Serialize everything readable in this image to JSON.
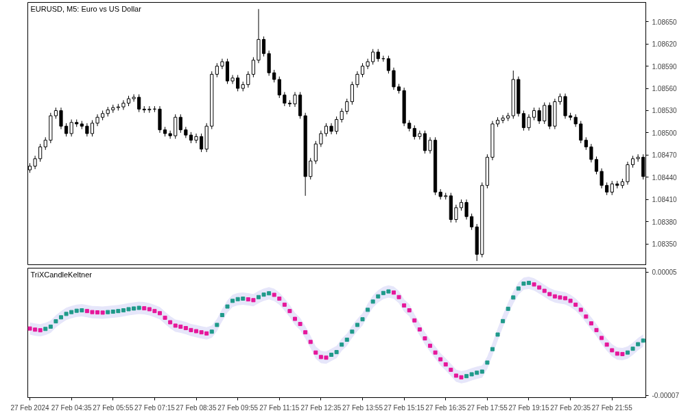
{
  "chart_data": [
    {
      "type": "candlestick",
      "title": "EURUSD, M5:  Euro vs US Dollar",
      "tick_labels": "y",
      "x": [
        "2024-02-27T03:15",
        "2024-02-27T03:25",
        "2024-02-27T03:35",
        "2024-02-27T03:45",
        "2024-02-27T03:55",
        "2024-02-27T04:05",
        "2024-02-27T04:15",
        "2024-02-27T04:25",
        "2024-02-27T04:35",
        "2024-02-27T04:45",
        "2024-02-27T04:55",
        "2024-02-27T05:05",
        "2024-02-27T05:15",
        "2024-02-27T05:25",
        "2024-02-27T05:35",
        "2024-02-27T05:45",
        "2024-02-27T05:55",
        "2024-02-27T06:05",
        "2024-02-27T06:15",
        "2024-02-27T06:25",
        "2024-02-27T06:35",
        "2024-02-27T06:45",
        "2024-02-27T06:55",
        "2024-02-27T07:05",
        "2024-02-27T07:15",
        "2024-02-27T07:25",
        "2024-02-27T07:35",
        "2024-02-27T07:45",
        "2024-02-27T07:55",
        "2024-02-27T08:05",
        "2024-02-27T08:15",
        "2024-02-27T08:25",
        "2024-02-27T08:35",
        "2024-02-27T08:45",
        "2024-02-27T08:55",
        "2024-02-27T09:05",
        "2024-02-27T09:15",
        "2024-02-27T09:25",
        "2024-02-27T09:35",
        "2024-02-27T09:45",
        "2024-02-27T09:55",
        "2024-02-27T10:05",
        "2024-02-27T10:15",
        "2024-02-27T10:25",
        "2024-02-27T10:35",
        "2024-02-27T10:45",
        "2024-02-27T10:55",
        "2024-02-27T11:05",
        "2024-02-27T11:15",
        "2024-02-27T11:25",
        "2024-02-27T11:35",
        "2024-02-27T11:45",
        "2024-02-27T11:55",
        "2024-02-27T12:05",
        "2024-02-27T12:15",
        "2024-02-27T12:25",
        "2024-02-27T12:35",
        "2024-02-27T12:45",
        "2024-02-27T12:55",
        "2024-02-27T13:05",
        "2024-02-27T13:15",
        "2024-02-27T13:25",
        "2024-02-27T13:35",
        "2024-02-27T13:45",
        "2024-02-27T13:55",
        "2024-02-27T14:05",
        "2024-02-27T14:15",
        "2024-02-27T14:25",
        "2024-02-27T14:35",
        "2024-02-27T14:45",
        "2024-02-27T14:55",
        "2024-02-27T15:05",
        "2024-02-27T15:15",
        "2024-02-27T15:25",
        "2024-02-27T15:35",
        "2024-02-27T15:45",
        "2024-02-27T15:55",
        "2024-02-27T16:05",
        "2024-02-27T16:15",
        "2024-02-27T16:25",
        "2024-02-27T16:35",
        "2024-02-27T16:45",
        "2024-02-27T16:55",
        "2024-02-27T17:05",
        "2024-02-27T17:15",
        "2024-02-27T17:25",
        "2024-02-27T17:35",
        "2024-02-27T17:45",
        "2024-02-27T17:55",
        "2024-02-27T18:05",
        "2024-02-27T18:15",
        "2024-02-27T18:25",
        "2024-02-27T18:35",
        "2024-02-27T18:45",
        "2024-02-27T18:55",
        "2024-02-27T19:05",
        "2024-02-27T19:15",
        "2024-02-27T19:25",
        "2024-02-27T19:35",
        "2024-02-27T19:45",
        "2024-02-27T19:55",
        "2024-02-27T20:05",
        "2024-02-27T20:15",
        "2024-02-27T20:25",
        "2024-02-27T20:35",
        "2024-02-27T20:45",
        "2024-02-27T20:55",
        "2024-02-27T21:05",
        "2024-02-27T21:15",
        "2024-02-27T21:25",
        "2024-02-27T21:35",
        "2024-02-27T21:45",
        "2024-02-27T21:55",
        "2024-02-27T22:05",
        "2024-02-27T22:15",
        "2024-02-27T22:25",
        "2024-02-27T22:35",
        "2024-02-27T22:45",
        "2024-02-27T22:55"
      ],
      "ohlc": [
        [
          1.0845,
          1.08459,
          1.08446,
          1.08455
        ],
        [
          1.08455,
          1.08469,
          1.08451,
          1.08465
        ],
        [
          1.08465,
          1.08485,
          1.08461,
          1.08481
        ],
        [
          1.08481,
          1.08494,
          1.08477,
          1.0849
        ],
        [
          1.0849,
          1.08527,
          1.08486,
          1.08523
        ],
        [
          1.08523,
          1.08534,
          1.08519,
          1.0853
        ],
        [
          1.0853,
          1.08534,
          1.08505,
          1.08509
        ],
        [
          1.08509,
          1.08513,
          1.08495,
          1.08499
        ],
        [
          1.08499,
          1.08518,
          1.08495,
          1.08514
        ],
        [
          1.08514,
          1.08518,
          1.08508,
          1.08512
        ],
        [
          1.08512,
          1.08516,
          1.08505,
          1.08509
        ],
        [
          1.08509,
          1.08513,
          1.08495,
          1.08499
        ],
        [
          1.08499,
          1.08517,
          1.08495,
          1.08513
        ],
        [
          1.08513,
          1.08525,
          1.08509,
          1.08521
        ],
        [
          1.08521,
          1.0853,
          1.08517,
          1.08526
        ],
        [
          1.08526,
          1.08535,
          1.08522,
          1.08531
        ],
        [
          1.08531,
          1.08538,
          1.08527,
          1.08534
        ],
        [
          1.08534,
          1.08539,
          1.0853,
          1.08535
        ],
        [
          1.08535,
          1.08544,
          1.08531,
          1.0854
        ],
        [
          1.0854,
          1.0855,
          1.08536,
          1.08546
        ],
        [
          1.08546,
          1.08552,
          1.08542,
          1.08548
        ],
        [
          1.08548,
          1.08552,
          1.08528,
          1.08532
        ],
        [
          1.08532,
          1.08536,
          1.08527,
          1.08531
        ],
        [
          1.08531,
          1.08536,
          1.08527,
          1.08532
        ],
        [
          1.08532,
          1.08536,
          1.08528,
          1.08532
        ],
        [
          1.08532,
          1.08536,
          1.085,
          1.08504
        ],
        [
          1.08504,
          1.08508,
          1.08495,
          1.08499
        ],
        [
          1.08499,
          1.08503,
          1.08492,
          1.08496
        ],
        [
          1.08496,
          1.08525,
          1.08492,
          1.08521
        ],
        [
          1.08521,
          1.08525,
          1.085,
          1.08504
        ],
        [
          1.08504,
          1.08508,
          1.08493,
          1.08497
        ],
        [
          1.08497,
          1.08501,
          1.08486,
          1.0849
        ],
        [
          1.0849,
          1.08499,
          1.08486,
          1.08495
        ],
        [
          1.08495,
          1.08499,
          1.08474,
          1.08478
        ],
        [
          1.08478,
          1.08513,
          1.08474,
          1.08509
        ],
        [
          1.08509,
          1.08583,
          1.08505,
          1.08579
        ],
        [
          1.08579,
          1.08594,
          1.08575,
          1.0859
        ],
        [
          1.0859,
          1.086,
          1.08586,
          1.08596
        ],
        [
          1.08596,
          1.086,
          1.08566,
          1.0857
        ],
        [
          1.0857,
          1.08578,
          1.08566,
          1.08574
        ],
        [
          1.08574,
          1.08578,
          1.08556,
          1.0856
        ],
        [
          1.0856,
          1.08569,
          1.08556,
          1.08565
        ],
        [
          1.08565,
          1.08583,
          1.08561,
          1.08579
        ],
        [
          1.08579,
          1.08602,
          1.08575,
          1.08598
        ],
        [
          1.08598,
          1.08667,
          1.08594,
          1.08626
        ],
        [
          1.08626,
          1.0863,
          1.08603,
          1.08607
        ],
        [
          1.08607,
          1.08611,
          1.08577,
          1.08581
        ],
        [
          1.08581,
          1.08585,
          1.08568,
          1.08572
        ],
        [
          1.08572,
          1.08576,
          1.08547,
          1.08551
        ],
        [
          1.08551,
          1.08555,
          1.08536,
          1.0854
        ],
        [
          1.0854,
          1.08544,
          1.08535,
          1.08539
        ],
        [
          1.08539,
          1.08555,
          1.08535,
          1.08551
        ],
        [
          1.08551,
          1.08555,
          1.08519,
          1.08523
        ],
        [
          1.08523,
          1.08527,
          1.08415,
          1.08441
        ],
        [
          1.08441,
          1.08466,
          1.08437,
          1.08462
        ],
        [
          1.08462,
          1.08489,
          1.08458,
          1.08485
        ],
        [
          1.08485,
          1.08503,
          1.08481,
          1.08499
        ],
        [
          1.08499,
          1.08513,
          1.08495,
          1.08509
        ],
        [
          1.08509,
          1.08513,
          1.08498,
          1.08502
        ],
        [
          1.08502,
          1.08522,
          1.08498,
          1.08518
        ],
        [
          1.08518,
          1.08533,
          1.08514,
          1.08529
        ],
        [
          1.08529,
          1.08546,
          1.08525,
          1.08542
        ],
        [
          1.08542,
          1.08569,
          1.08538,
          1.08565
        ],
        [
          1.08565,
          1.08583,
          1.08561,
          1.08579
        ],
        [
          1.08579,
          1.08594,
          1.08575,
          1.0859
        ],
        [
          1.0859,
          1.086,
          1.08586,
          1.08596
        ],
        [
          1.08596,
          1.08613,
          1.08592,
          1.08609
        ],
        [
          1.08609,
          1.08613,
          1.08596,
          1.086
        ],
        [
          1.086,
          1.08604,
          1.08596,
          1.086
        ],
        [
          1.086,
          1.08604,
          1.0858,
          1.08584
        ],
        [
          1.08584,
          1.08588,
          1.08558,
          1.08562
        ],
        [
          1.08562,
          1.08566,
          1.08553,
          1.08557
        ],
        [
          1.08557,
          1.08561,
          1.08509,
          1.08513
        ],
        [
          1.08513,
          1.08517,
          1.08502,
          1.08506
        ],
        [
          1.08506,
          1.0851,
          1.08491,
          1.08495
        ],
        [
          1.08495,
          1.08503,
          1.08491,
          1.08499
        ],
        [
          1.08499,
          1.08503,
          1.08472,
          1.08476
        ],
        [
          1.08476,
          1.08494,
          1.08472,
          1.0849
        ],
        [
          1.0849,
          1.08494,
          1.08416,
          1.0842
        ],
        [
          1.0842,
          1.08424,
          1.0841,
          1.08414
        ],
        [
          1.08414,
          1.08419,
          1.0841,
          1.08415
        ],
        [
          1.08415,
          1.08419,
          1.08379,
          1.08383
        ],
        [
          1.08383,
          1.08403,
          1.08379,
          1.08399
        ],
        [
          1.08399,
          1.0841,
          1.08395,
          1.08406
        ],
        [
          1.08406,
          1.0841,
          1.08383,
          1.08387
        ],
        [
          1.08387,
          1.08391,
          1.08369,
          1.08373
        ],
        [
          1.08373,
          1.08377,
          1.08327,
          1.08336
        ],
        [
          1.08336,
          1.08433,
          1.08332,
          1.08429
        ],
        [
          1.08429,
          1.08471,
          1.08425,
          1.08467
        ],
        [
          1.08467,
          1.08516,
          1.08463,
          1.08512
        ],
        [
          1.08512,
          1.08521,
          1.08508,
          1.08517
        ],
        [
          1.08517,
          1.08524,
          1.08513,
          1.0852
        ],
        [
          1.0852,
          1.08527,
          1.08516,
          1.08523
        ],
        [
          1.08523,
          1.08584,
          1.08519,
          1.08572
        ],
        [
          1.08572,
          1.08576,
          1.08522,
          1.08526
        ],
        [
          1.08526,
          1.0853,
          1.08503,
          1.08507
        ],
        [
          1.08507,
          1.08525,
          1.08503,
          1.08521
        ],
        [
          1.08521,
          1.08534,
          1.08517,
          1.0853
        ],
        [
          1.0853,
          1.08534,
          1.08512,
          1.08516
        ],
        [
          1.08516,
          1.08541,
          1.08512,
          1.08537
        ],
        [
          1.08537,
          1.08541,
          1.08505,
          1.08509
        ],
        [
          1.08509,
          1.08546,
          1.08505,
          1.08542
        ],
        [
          1.08542,
          1.08553,
          1.08538,
          1.08549
        ],
        [
          1.08549,
          1.08553,
          1.08519,
          1.08523
        ],
        [
          1.08523,
          1.08527,
          1.08517,
          1.08521
        ],
        [
          1.08521,
          1.08525,
          1.08508,
          1.08512
        ],
        [
          1.08512,
          1.08516,
          1.08486,
          1.0849
        ],
        [
          1.0849,
          1.08494,
          1.08477,
          1.08481
        ],
        [
          1.08481,
          1.08485,
          1.0846,
          1.08464
        ],
        [
          1.08464,
          1.08468,
          1.08444,
          1.08448
        ],
        [
          1.08448,
          1.08452,
          1.08425,
          1.08429
        ],
        [
          1.08429,
          1.08433,
          1.08416,
          1.0842
        ],
        [
          1.0842,
          1.08435,
          1.08416,
          1.08431
        ],
        [
          1.08431,
          1.08435,
          1.08425,
          1.08429
        ],
        [
          1.08429,
          1.08438,
          1.08425,
          1.08434
        ],
        [
          1.08434,
          1.08461,
          1.0843,
          1.08457
        ],
        [
          1.08457,
          1.08469,
          1.08453,
          1.08465
        ],
        [
          1.08465,
          1.08471,
          1.08461,
          1.08467
        ],
        [
          1.08467,
          1.08471,
          1.08437,
          1.08441
        ]
      ],
      "xlim": [
        "2024-02-27T03:11",
        "2024-02-27T23:00"
      ],
      "ylim": [
        1.08322,
        1.08676
      ],
      "yticks": [
        {
          "value": 1.0835,
          "label": "1.08350"
        },
        {
          "value": 1.0838,
          "label": "1.08380"
        },
        {
          "value": 1.0841,
          "label": "1.08410"
        },
        {
          "value": 1.0844,
          "label": "1.08440"
        },
        {
          "value": 1.0847,
          "label": "1.08470"
        },
        {
          "value": 1.085,
          "label": "1.08500"
        },
        {
          "value": 1.0853,
          "label": "1.08530"
        },
        {
          "value": 1.0856,
          "label": "1.08560"
        },
        {
          "value": 1.0859,
          "label": "1.08590"
        },
        {
          "value": 1.0862,
          "label": "1.08620"
        },
        {
          "value": 1.0865,
          "label": "1.08650"
        }
      ]
    },
    {
      "type": "scatter",
      "title": "TriXCandleKeltner",
      "marker": "square",
      "x": [
        "2024-02-27T03:15",
        "2024-02-27T03:25",
        "2024-02-27T03:35",
        "2024-02-27T03:45",
        "2024-02-27T03:55",
        "2024-02-27T04:05",
        "2024-02-27T04:15",
        "2024-02-27T04:25",
        "2024-02-27T04:35",
        "2024-02-27T04:45",
        "2024-02-27T04:55",
        "2024-02-27T05:05",
        "2024-02-27T05:15",
        "2024-02-27T05:25",
        "2024-02-27T05:35",
        "2024-02-27T05:45",
        "2024-02-27T05:55",
        "2024-02-27T06:05",
        "2024-02-27T06:15",
        "2024-02-27T06:25",
        "2024-02-27T06:35",
        "2024-02-27T06:45",
        "2024-02-27T06:55",
        "2024-02-27T07:05",
        "2024-02-27T07:15",
        "2024-02-27T07:25",
        "2024-02-27T07:35",
        "2024-02-27T07:45",
        "2024-02-27T07:55",
        "2024-02-27T08:05",
        "2024-02-27T08:15",
        "2024-02-27T08:25",
        "2024-02-27T08:35",
        "2024-02-27T08:45",
        "2024-02-27T08:55",
        "2024-02-27T09:05",
        "2024-02-27T09:15",
        "2024-02-27T09:25",
        "2024-02-27T09:35",
        "2024-02-27T09:45",
        "2024-02-27T09:55",
        "2024-02-27T10:05",
        "2024-02-27T10:15",
        "2024-02-27T10:25",
        "2024-02-27T10:35",
        "2024-02-27T10:45",
        "2024-02-27T10:55",
        "2024-02-27T11:05",
        "2024-02-27T11:15",
        "2024-02-27T11:25",
        "2024-02-27T11:35",
        "2024-02-27T11:45",
        "2024-02-27T11:55",
        "2024-02-27T12:05",
        "2024-02-27T12:15",
        "2024-02-27T12:25",
        "2024-02-27T12:35",
        "2024-02-27T12:45",
        "2024-02-27T12:55",
        "2024-02-27T13:05",
        "2024-02-27T13:15",
        "2024-02-27T13:25",
        "2024-02-27T13:35",
        "2024-02-27T13:45",
        "2024-02-27T13:55",
        "2024-02-27T14:05",
        "2024-02-27T14:15",
        "2024-02-27T14:25",
        "2024-02-27T14:35",
        "2024-02-27T14:45",
        "2024-02-27T14:55",
        "2024-02-27T15:05",
        "2024-02-27T15:15",
        "2024-02-27T15:25",
        "2024-02-27T15:35",
        "2024-02-27T15:45",
        "2024-02-27T15:55",
        "2024-02-27T16:05",
        "2024-02-27T16:15",
        "2024-02-27T16:25",
        "2024-02-27T16:35",
        "2024-02-27T16:45",
        "2024-02-27T16:55",
        "2024-02-27T17:05",
        "2024-02-27T17:15",
        "2024-02-27T17:25",
        "2024-02-27T17:35",
        "2024-02-27T17:45",
        "2024-02-27T17:55",
        "2024-02-27T18:05",
        "2024-02-27T18:15",
        "2024-02-27T18:25",
        "2024-02-27T18:35",
        "2024-02-27T18:45",
        "2024-02-27T18:55",
        "2024-02-27T19:05",
        "2024-02-27T19:15",
        "2024-02-27T19:25",
        "2024-02-27T19:35",
        "2024-02-27T19:45",
        "2024-02-27T19:55",
        "2024-02-27T20:05",
        "2024-02-27T20:15",
        "2024-02-27T20:25",
        "2024-02-27T20:35",
        "2024-02-27T20:45",
        "2024-02-27T20:55",
        "2024-02-27T21:05",
        "2024-02-27T21:15",
        "2024-02-27T21:25",
        "2024-02-27T21:35",
        "2024-02-27T21:45",
        "2024-02-27T21:55",
        "2024-02-27T22:05",
        "2024-02-27T22:15",
        "2024-02-27T22:25",
        "2024-02-27T22:35",
        "2024-02-27T22:45",
        "2024-02-27T22:55"
      ],
      "series": [
        {
          "colors": [
            "#e6179a",
            "#e6179a",
            "#e6179a",
            "#1f9a8a",
            "#1f9a8a",
            "#1f9a8a",
            "#1f9a8a",
            "#1f9a8a",
            "#1f9a8a",
            "#1f9a8a",
            "#1f9a8a",
            "#e6179a",
            "#e6179a",
            "#e6179a",
            "#e6179a",
            "#1f9a8a",
            "#1f9a8a",
            "#1f9a8a",
            "#1f9a8a",
            "#1f9a8a",
            "#1f9a8a",
            "#1f9a8a",
            "#e6179a",
            "#e6179a",
            "#e6179a",
            "#e6179a",
            "#e6179a",
            "#e6179a",
            "#e6179a",
            "#e6179a",
            "#e6179a",
            "#e6179a",
            "#e6179a",
            "#e6179a",
            "#e6179a",
            "#1f9a8a",
            "#1f9a8a",
            "#1f9a8a",
            "#1f9a8a",
            "#1f9a8a",
            "#1f9a8a",
            "#1f9a8a",
            "#e6179a",
            "#e6179a",
            "#1f9a8a",
            "#1f9a8a",
            "#1f9a8a",
            "#e6179a",
            "#e6179a",
            "#e6179a",
            "#e6179a",
            "#e6179a",
            "#e6179a",
            "#e6179a",
            "#e6179a",
            "#e6179a",
            "#e6179a",
            "#e6179a",
            "#1f9a8a",
            "#1f9a8a",
            "#1f9a8a",
            "#1f9a8a",
            "#1f9a8a",
            "#1f9a8a",
            "#1f9a8a",
            "#1f9a8a",
            "#1f9a8a",
            "#1f9a8a",
            "#1f9a8a",
            "#1f9a8a",
            "#e6179a",
            "#e6179a",
            "#e6179a",
            "#e6179a",
            "#e6179a",
            "#e6179a",
            "#e6179a",
            "#e6179a",
            "#e6179a",
            "#e6179a",
            "#e6179a",
            "#e6179a",
            "#e6179a",
            "#e6179a",
            "#1f9a8a",
            "#1f9a8a",
            "#1f9a8a",
            "#1f9a8a",
            "#1f9a8a",
            "#1f9a8a",
            "#1f9a8a",
            "#1f9a8a",
            "#1f9a8a",
            "#1f9a8a",
            "#1f9a8a",
            "#1f9a8a",
            "#1f9a8a",
            "#e6179a",
            "#e6179a",
            "#e6179a",
            "#e6179a",
            "#e6179a",
            "#e6179a",
            "#e6179a",
            "#e6179a",
            "#e6179a",
            "#e6179a",
            "#e6179a",
            "#e6179a",
            "#e6179a",
            "#e6179a",
            "#e6179a",
            "#e6179a",
            "#e6179a",
            "#e6179a",
            "#1f9a8a",
            "#1f9a8a",
            "#1f9a8a",
            "#1f9a8a"
          ],
          "values": [
            -4.9e-06,
            -6e-06,
            -6.6e-06,
            -5.3e-06,
            -3.1e-06,
            2.1e-06,
            6e-06,
            9.3e-06,
            1.11e-05,
            1.24e-05,
            1.28e-05,
            1.21e-05,
            1.11e-05,
            1.08e-05,
            1.06e-05,
            1.11e-05,
            1.15e-05,
            1.21e-05,
            1.28e-05,
            1.39e-05,
            1.46e-05,
            1.52e-05,
            1.48e-05,
            1.39e-05,
            1.21e-05,
            1e-05,
            5.6e-06,
            1.2e-06,
            -2.1e-06,
            -3.1e-06,
            -4.5e-06,
            -6.4e-06,
            -7.5e-06,
            -8.6e-06,
            -9.7e-06,
            -8e-06,
            -1.4e-06,
            8.2e-06,
            1.65e-05,
            2.2e-05,
            2.37e-05,
            2.42e-05,
            2.35e-05,
            2.27e-05,
            2.57e-05,
            2.81e-05,
            2.94e-05,
            2.79e-05,
            2.42e-05,
            1.83e-05,
            1.21e-05,
            4.5e-06,
            -5e-07,
            -8.6e-06,
            -1.8e-05,
            -2.83e-05,
            -3.27e-05,
            -3.33e-05,
            -3.05e-05,
            -2.79e-05,
            -2.06e-05,
            -1.58e-05,
            -8e-06,
            -1.4e-06,
            4.1e-06,
            1.33e-05,
            2.13e-05,
            2.64e-05,
            2.97e-05,
            3.12e-05,
            3.01e-05,
            2.57e-05,
            1.76e-05,
            1.28e-05,
            3e-06,
            -5.8e-06,
            -1.45e-05,
            -2.17e-05,
            -2.83e-05,
            -3.49e-05,
            -3.99e-05,
            -4.51e-05,
            -5.08e-05,
            -5.24e-05,
            -5.13e-05,
            -4.95e-05,
            -4.8e-05,
            -4.69e-05,
            -3.81e-05,
            -2.5e-05,
            -1.08e-05,
            2.3e-06,
            1.43e-05,
            2.53e-05,
            3.4e-05,
            3.88e-05,
            3.95e-05,
            3.8e-05,
            3.51e-05,
            3.18e-05,
            2.86e-05,
            2.64e-05,
            2.53e-05,
            2.46e-05,
            2.2e-05,
            1.83e-05,
            1.33e-05,
            6.7e-06,
            1e-07,
            -6.4e-06,
            -1.41e-05,
            -2.06e-05,
            -2.61e-05,
            -2.94e-05,
            -2.98e-05,
            -2.83e-05,
            -2.46e-05,
            -2.02e-05,
            -1.67e-05
          ],
          "lower": [
            -1.09e-05,
            -1.2e-05,
            -1.26e-05,
            -1.13e-05,
            -9.1e-06,
            -3.9e-06,
            0,
            3.3e-06,
            5.1e-06,
            6.4e-06,
            6.8e-06,
            6.1e-06,
            5.1e-06,
            4.8e-06,
            4.6e-06,
            5.1e-06,
            5.5e-06,
            6.1e-06,
            6.8e-06,
            7.9e-06,
            8.6e-06,
            9.2e-06,
            8.8e-06,
            7.9e-06,
            6.1e-06,
            4e-06,
            -4e-07,
            -4.8e-06,
            -8.1e-06,
            -9.1e-06,
            -1.05e-05,
            -1.24e-05,
            -1.35e-05,
            -1.46e-05,
            -1.57e-05,
            -1.4e-05,
            -7.4e-06,
            2.2e-06,
            1.05e-05,
            1.6e-05,
            1.77e-05,
            1.82e-05,
            1.75e-05,
            1.67e-05,
            1.97e-05,
            2.21e-05,
            2.34e-05,
            2.19e-05,
            1.82e-05,
            1.23e-05,
            6.1e-06,
            -1.5e-06,
            -6.5e-06,
            -1.46e-05,
            -2.4e-05,
            -3.43e-05,
            -3.87e-05,
            -3.93e-05,
            -3.65e-05,
            -3.39e-05,
            -2.66e-05,
            -2.18e-05,
            -1.4e-05,
            -7.4e-06,
            -1.9e-06,
            7.3e-06,
            1.53e-05,
            2.04e-05,
            2.37e-05,
            2.52e-05,
            2.41e-05,
            1.97e-05,
            1.16e-05,
            6.8e-06,
            -3e-06,
            -1.18e-05,
            -2.05e-05,
            -2.77e-05,
            -3.43e-05,
            -4.09e-05,
            -4.59e-05,
            -5.11e-05,
            -5.68e-05,
            -5.84e-05,
            -5.73e-05,
            -5.55e-05,
            -5.4e-05,
            -5.29e-05,
            -4.41e-05,
            -3.1e-05,
            -1.68e-05,
            -3.7e-06,
            8.3e-06,
            1.93e-05,
            2.8e-05,
            3.28e-05,
            3.35e-05,
            3.2e-05,
            2.91e-05,
            2.58e-05,
            2.26e-05,
            2.04e-05,
            1.93e-05,
            1.86e-05,
            1.6e-05,
            1.23e-05,
            7.3e-06,
            7e-07,
            -5.9e-06,
            -1.24e-05,
            -2.01e-05,
            -2.66e-05,
            -3.21e-05,
            -3.54e-05,
            -3.58e-05,
            -3.43e-05,
            -3.06e-05,
            -2.62e-05,
            -2.27e-05
          ],
          "upper": [
            1.1e-06,
            0,
            -6e-07,
            7e-07,
            2.9e-06,
            8.1e-06,
            1.2e-05,
            1.53e-05,
            1.71e-05,
            1.84e-05,
            1.88e-05,
            1.81e-05,
            1.71e-05,
            1.68e-05,
            1.66e-05,
            1.71e-05,
            1.75e-05,
            1.81e-05,
            1.88e-05,
            1.99e-05,
            2.06e-05,
            2.12e-05,
            2.08e-05,
            1.99e-05,
            1.81e-05,
            1.6e-05,
            1.16e-05,
            7.2e-06,
            3.9e-06,
            2.9e-06,
            1.5e-06,
            -4e-07,
            -1.5e-06,
            -2.6e-06,
            -3.7e-06,
            -2e-06,
            4.6e-06,
            1.42e-05,
            2.25e-05,
            2.8e-05,
            2.97e-05,
            3.02e-05,
            2.95e-05,
            2.87e-05,
            3.17e-05,
            3.41e-05,
            3.54e-05,
            3.39e-05,
            3.02e-05,
            2.43e-05,
            1.81e-05,
            1.05e-05,
            5.5e-06,
            -2.6e-06,
            -1.2e-05,
            -2.23e-05,
            -2.67e-05,
            -2.73e-05,
            -2.45e-05,
            -2.19e-05,
            -1.46e-05,
            -9.8e-06,
            -2e-06,
            4.6e-06,
            1.01e-05,
            1.93e-05,
            2.73e-05,
            3.24e-05,
            3.57e-05,
            3.72e-05,
            3.61e-05,
            3.17e-05,
            2.36e-05,
            1.88e-05,
            9e-06,
            2e-07,
            -8.5e-06,
            -1.57e-05,
            -2.23e-05,
            -2.89e-05,
            -3.39e-05,
            -3.91e-05,
            -4.48e-05,
            -4.64e-05,
            -4.53e-05,
            -4.35e-05,
            -4.2e-05,
            -4.09e-05,
            -3.21e-05,
            -1.9e-05,
            -4.8e-06,
            8.3e-06,
            2.03e-05,
            3.13e-05,
            4e-05,
            4.48e-05,
            4.55e-05,
            4.4e-05,
            4.11e-05,
            3.78e-05,
            3.46e-05,
            3.24e-05,
            3.13e-05,
            3.06e-05,
            2.8e-05,
            2.43e-05,
            1.93e-05,
            1.27e-05,
            6.1e-06,
            -4e-07,
            -8.1e-06,
            -1.46e-05,
            -2.01e-05,
            -2.34e-05,
            -2.38e-05,
            -2.23e-05,
            -1.86e-05,
            -1.42e-05,
            -1.07e-05
          ]
        }
      ],
      "xlim": [
        "2024-02-27T03:11",
        "2024-02-27T23:00"
      ],
      "ylim": [
        -7.22e-05,
        5.39e-05
      ],
      "xticks": [
        {
          "value": "2024-02-27T03:15",
          "label": "27 Feb 2024"
        },
        {
          "value": "2024-02-27T04:35",
          "label": "27 Feb 04:35"
        },
        {
          "value": "2024-02-27T05:55",
          "label": "27 Feb 05:55"
        },
        {
          "value": "2024-02-27T07:15",
          "label": "27 Feb 07:15"
        },
        {
          "value": "2024-02-27T08:35",
          "label": "27 Feb 08:35"
        },
        {
          "value": "2024-02-27T09:55",
          "label": "27 Feb 09:55"
        },
        {
          "value": "2024-02-27T11:15",
          "label": "27 Feb 11:15"
        },
        {
          "value": "2024-02-27T12:35",
          "label": "27 Feb 12:35"
        },
        {
          "value": "2024-02-27T13:55",
          "label": "27 Feb 13:55"
        },
        {
          "value": "2024-02-27T15:15",
          "label": "27 Feb 15:15"
        },
        {
          "value": "2024-02-27T16:35",
          "label": "27 Feb 16:35"
        },
        {
          "value": "2024-02-27T17:55",
          "label": "27 Feb 17:55"
        },
        {
          "value": "2024-02-27T19:15",
          "label": "27 Feb 19:15"
        },
        {
          "value": "2024-02-27T20:35",
          "label": "27 Feb 20:35"
        },
        {
          "value": "2024-02-27T21:55",
          "label": "27 Feb 21:55"
        }
      ],
      "yticks": [
        {
          "value": 5e-05,
          "label": "0.00005"
        },
        {
          "value": -7e-05,
          "label": "-0.00007"
        }
      ]
    }
  ]
}
